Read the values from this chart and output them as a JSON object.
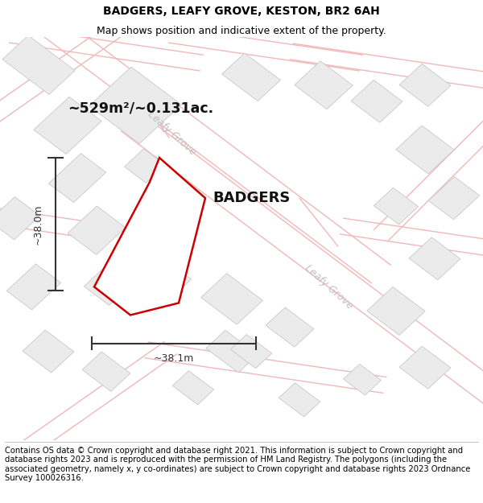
{
  "title_line1": "BADGERS, LEAFY GROVE, KESTON, BR2 6AH",
  "title_line2": "Map shows position and indicative extent of the property.",
  "footer_text": "Contains OS data © Crown copyright and database right 2021. This information is subject to Crown copyright and database rights 2023 and is reproduced with the permission of HM Land Registry. The polygons (including the associated geometry, namely x, y co-ordinates) are subject to Crown copyright and database rights 2023 Ordnance Survey 100026316.",
  "area_label": "~529m²/~0.131ac.",
  "property_label": "BADGERS",
  "dim_width_label": "~38.1m",
  "dim_height_label": "~38.0m",
  "map_bg": "#ffffff",
  "road_line_color": "#f0b8b8",
  "building_fill": "#ebebeb",
  "building_edge": "#c8c8c8",
  "street_label_color": "#c0c0c0",
  "dim_color": "#333333",
  "property_edge": "#cc0000",
  "property_fill": "#ffffff",
  "title_fontsize": 10,
  "subtitle_fontsize": 9,
  "footer_fontsize": 7.2,
  "area_fontsize": 12.5,
  "property_label_fontsize": 13,
  "street_fontsize": 9
}
